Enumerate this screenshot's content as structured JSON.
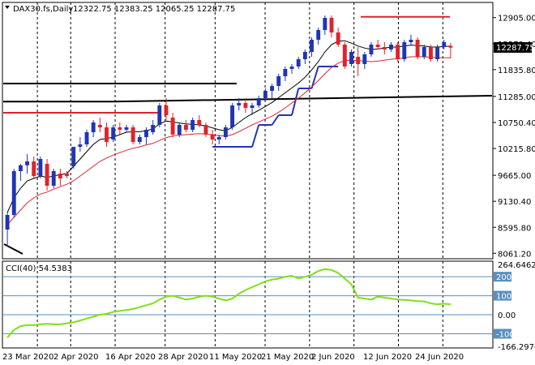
{
  "header": {
    "symbol": "DAX30.fs,Daily",
    "ohlc": "12322.75 12383.25 12065.25 12287.75"
  },
  "colors": {
    "up": "#1f35b5",
    "down": "#e0222a",
    "ma_fast": "#000000",
    "ma_slow": "#e0222a",
    "support_blue": "#1f35b5",
    "cci": "#7ee01a",
    "level_line": "#5a8fc0",
    "price_tag_bg": "#000000"
  },
  "price_axis": {
    "ticks": [
      "12905.00",
      "12370.40",
      "11835.80",
      "11285.00",
      "10750.40",
      "10215.80",
      "9665.00",
      "9130.40",
      "8595.80",
      "8061.20"
    ],
    "current_price": "12287.75"
  },
  "cci_panel": {
    "label": "CCI(40) 54.5383",
    "ticks": [
      "264.6462",
      "200",
      "100",
      "0.00",
      "-100",
      "-166.2976"
    ]
  },
  "time_axis": {
    "labels": [
      "23 Mar 2020",
      "2 Apr 2020",
      "16 Apr 2020",
      "28 Apr 2020",
      "11 May 2020",
      "21 May 2020",
      "2 Jun 2020",
      "12 Jun 2020",
      "24 Jun 2020"
    ]
  },
  "chart_data": [
    {
      "type": "candlestick",
      "title": "DAX30.fs,Daily",
      "ylim": [
        8000,
        13100
      ],
      "candles": [
        {
          "o": 8550,
          "h": 8900,
          "l": 8200,
          "c": 8850
        },
        {
          "o": 8850,
          "h": 9800,
          "l": 8800,
          "c": 9750
        },
        {
          "o": 9750,
          "h": 9900,
          "l": 9550,
          "c": 9870
        },
        {
          "o": 9870,
          "h": 10100,
          "l": 9700,
          "c": 9950
        },
        {
          "o": 9950,
          "h": 10050,
          "l": 9600,
          "c": 9650
        },
        {
          "o": 9650,
          "h": 10050,
          "l": 9600,
          "c": 10000
        },
        {
          "o": 9900,
          "h": 10000,
          "l": 9350,
          "c": 9450
        },
        {
          "o": 9450,
          "h": 9800,
          "l": 9400,
          "c": 9750
        },
        {
          "o": 9700,
          "h": 9800,
          "l": 9450,
          "c": 9600
        },
        {
          "o": 9700,
          "h": 9750,
          "l": 9600,
          "c": 9650
        },
        {
          "o": 9850,
          "h": 10250,
          "l": 9800,
          "c": 10250
        },
        {
          "o": 10250,
          "h": 10450,
          "l": 10150,
          "c": 10300
        },
        {
          "o": 10300,
          "h": 10600,
          "l": 10250,
          "c": 10550
        },
        {
          "o": 10550,
          "h": 10800,
          "l": 10450,
          "c": 10750
        },
        {
          "o": 10700,
          "h": 10850,
          "l": 10550,
          "c": 10650
        },
        {
          "o": 10650,
          "h": 10750,
          "l": 10250,
          "c": 10350
        },
        {
          "o": 10400,
          "h": 10700,
          "l": 10350,
          "c": 10650
        },
        {
          "o": 10650,
          "h": 10750,
          "l": 10500,
          "c": 10600
        },
        {
          "o": 10600,
          "h": 10700,
          "l": 10550,
          "c": 10650
        },
        {
          "o": 10650,
          "h": 10700,
          "l": 10300,
          "c": 10350
        },
        {
          "o": 10350,
          "h": 10500,
          "l": 10300,
          "c": 10450
        },
        {
          "o": 10450,
          "h": 10650,
          "l": 10300,
          "c": 10600
        },
        {
          "o": 10550,
          "h": 10800,
          "l": 10500,
          "c": 10700
        },
        {
          "o": 10700,
          "h": 11150,
          "l": 10650,
          "c": 11100
        },
        {
          "o": 11100,
          "h": 11250,
          "l": 10800,
          "c": 10900
        },
        {
          "o": 10850,
          "h": 10950,
          "l": 10450,
          "c": 10500
        },
        {
          "o": 10500,
          "h": 10750,
          "l": 10450,
          "c": 10700
        },
        {
          "o": 10700,
          "h": 10800,
          "l": 10550,
          "c": 10600
        },
        {
          "o": 10600,
          "h": 10850,
          "l": 10550,
          "c": 10800
        },
        {
          "o": 10800,
          "h": 10900,
          "l": 10650,
          "c": 10700
        },
        {
          "o": 10700,
          "h": 10750,
          "l": 10450,
          "c": 10500
        },
        {
          "o": 10500,
          "h": 10600,
          "l": 10300,
          "c": 10400
        },
        {
          "o": 10400,
          "h": 10500,
          "l": 10300,
          "c": 10450
        },
        {
          "o": 10450,
          "h": 10700,
          "l": 10400,
          "c": 10650
        },
        {
          "o": 10650,
          "h": 11150,
          "l": 10600,
          "c": 11100
        },
        {
          "o": 11100,
          "h": 11250,
          "l": 11000,
          "c": 11150
        },
        {
          "o": 11150,
          "h": 11250,
          "l": 10950,
          "c": 11050
        },
        {
          "o": 11050,
          "h": 11150,
          "l": 10900,
          "c": 11100
        },
        {
          "o": 11100,
          "h": 11300,
          "l": 11050,
          "c": 11250
        },
        {
          "o": 11250,
          "h": 11450,
          "l": 11200,
          "c": 11400
        },
        {
          "o": 11400,
          "h": 11550,
          "l": 11250,
          "c": 11500
        },
        {
          "o": 11500,
          "h": 11750,
          "l": 11400,
          "c": 11700
        },
        {
          "o": 11700,
          "h": 11900,
          "l": 11600,
          "c": 11850
        },
        {
          "o": 11850,
          "h": 11950,
          "l": 11750,
          "c": 11900
        },
        {
          "o": 11900,
          "h": 12100,
          "l": 11850,
          "c": 12050
        },
        {
          "o": 12050,
          "h": 12250,
          "l": 11950,
          "c": 12200
        },
        {
          "o": 12200,
          "h": 12500,
          "l": 12100,
          "c": 12450
        },
        {
          "o": 12450,
          "h": 12700,
          "l": 12350,
          "c": 12650
        },
        {
          "o": 12650,
          "h": 12950,
          "l": 12550,
          "c": 12900
        },
        {
          "o": 12900,
          "h": 12950,
          "l": 12500,
          "c": 12600
        },
        {
          "o": 12600,
          "h": 12700,
          "l": 12300,
          "c": 12350
        },
        {
          "o": 12350,
          "h": 12400,
          "l": 11850,
          "c": 11900
        },
        {
          "o": 11950,
          "h": 12250,
          "l": 11900,
          "c": 12200
        },
        {
          "o": 12100,
          "h": 12300,
          "l": 11700,
          "c": 11950
        },
        {
          "o": 11950,
          "h": 12200,
          "l": 11850,
          "c": 12150
        },
        {
          "o": 12150,
          "h": 12400,
          "l": 12100,
          "c": 12350
        },
        {
          "o": 12350,
          "h": 12450,
          "l": 12250,
          "c": 12300
        },
        {
          "o": 12300,
          "h": 12400,
          "l": 12150,
          "c": 12250
        },
        {
          "o": 12250,
          "h": 12400,
          "l": 12200,
          "c": 12350
        },
        {
          "o": 12350,
          "h": 12400,
          "l": 12000,
          "c": 12050
        },
        {
          "o": 12050,
          "h": 12450,
          "l": 12000,
          "c": 12400
        },
        {
          "o": 12400,
          "h": 12550,
          "l": 12350,
          "c": 12450
        },
        {
          "o": 12450,
          "h": 12500,
          "l": 12050,
          "c": 12100
        },
        {
          "o": 12100,
          "h": 12350,
          "l": 12050,
          "c": 12300
        },
        {
          "o": 12300,
          "h": 12350,
          "l": 12000,
          "c": 12050
        },
        {
          "o": 12050,
          "h": 12350,
          "l": 12000,
          "c": 12300
        },
        {
          "o": 12300,
          "h": 12450,
          "l": 12250,
          "c": 12400
        },
        {
          "o": 12322.75,
          "h": 12383.25,
          "l": 12065.25,
          "c": 12287.75
        }
      ],
      "ma_fast": [
        8900,
        9200,
        9400,
        9550,
        9600,
        9650,
        9620,
        9650,
        9680,
        9700,
        9850,
        10000,
        10150,
        10300,
        10400,
        10420,
        10450,
        10500,
        10550,
        10560,
        10560,
        10580,
        10620,
        10720,
        10780,
        10760,
        10740,
        10720,
        10710,
        10700,
        10680,
        10640,
        10600,
        10580,
        10650,
        10750,
        10850,
        10930,
        11000,
        11080,
        11160,
        11260,
        11360,
        11460,
        11560,
        11680,
        11830,
        12000,
        12200,
        12350,
        12420,
        12430,
        12380,
        12320,
        12280,
        12250,
        12260,
        12280,
        12300,
        12300,
        12320,
        12340,
        12330,
        12320,
        12300,
        12300,
        12310,
        12320
      ],
      "ma_slow": [
        8650,
        8800,
        8950,
        9100,
        9200,
        9280,
        9320,
        9380,
        9430,
        9480,
        9550,
        9650,
        9750,
        9850,
        9950,
        10020,
        10080,
        10130,
        10180,
        10220,
        10250,
        10290,
        10320,
        10380,
        10440,
        10470,
        10490,
        10500,
        10510,
        10520,
        10510,
        10500,
        10480,
        10470,
        10500,
        10560,
        10630,
        10700,
        10760,
        10820,
        10880,
        10960,
        11050,
        11150,
        11250,
        11360,
        11480,
        11610,
        11750,
        11880,
        11970,
        12020,
        12030,
        12020,
        12010,
        12000,
        12010,
        12030,
        12050,
        12060,
        12080,
        12100,
        12100,
        12100,
        12090,
        12080,
        12080,
        12080
      ],
      "support_blue": [
        {
          "from": 31,
          "to": 37,
          "y": 10250
        },
        {
          "from": 38,
          "to": 40,
          "y": 10700
        },
        {
          "from": 41,
          "to": 43,
          "y": 10900
        },
        {
          "from": 44,
          "to": 46,
          "y": 11450
        },
        {
          "from": 47,
          "to": 50,
          "y": 11900
        }
      ],
      "horizontal_levels": [
        {
          "name": "resistance_black_1",
          "y": 11550
        },
        {
          "name": "resistance_black_2",
          "y": 11180
        },
        {
          "name": "resistance_red",
          "y": 10950
        },
        {
          "name": "trend_black",
          "y_start": 11180,
          "y_end": 11300
        },
        {
          "name": "top_red",
          "y": 12920
        }
      ]
    },
    {
      "type": "line",
      "title": "CCI(40) 54.5383",
      "ylim": [
        -166.2976,
        264.6462
      ],
      "levels": [
        200,
        100,
        0,
        -100
      ],
      "values": [
        -120,
        -80,
        -60,
        -55,
        -55,
        -50,
        -48,
        -50,
        -50,
        -45,
        -40,
        -30,
        -20,
        -10,
        0,
        5,
        15,
        20,
        25,
        30,
        40,
        50,
        60,
        80,
        95,
        100,
        90,
        80,
        85,
        95,
        100,
        95,
        85,
        75,
        85,
        110,
        130,
        145,
        160,
        175,
        185,
        190,
        200,
        205,
        190,
        200,
        210,
        230,
        240,
        235,
        220,
        190,
        160,
        90,
        85,
        80,
        95,
        90,
        85,
        80,
        78,
        75,
        72,
        70,
        60,
        55,
        58,
        54.54
      ]
    }
  ]
}
